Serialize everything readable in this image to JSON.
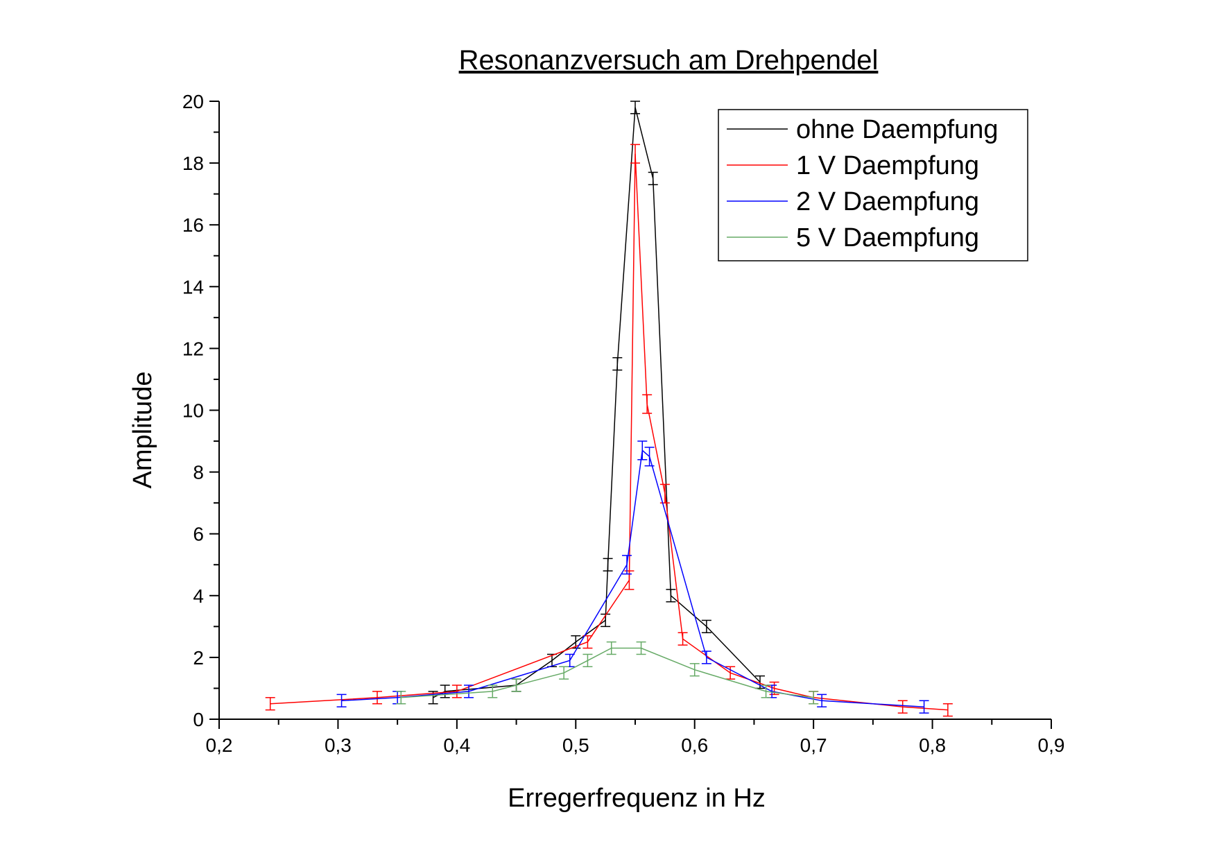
{
  "chart_data": {
    "type": "line",
    "title": "Resonanzversuch am Drehpendel",
    "xlabel": "Erregerfrequenz in Hz",
    "ylabel": "Amplitude",
    "xlim": [
      0.2,
      0.9
    ],
    "ylim": [
      0,
      20
    ],
    "x_ticks": [
      "0,2",
      "0,3",
      "0,4",
      "0,5",
      "0,6",
      "0,7",
      "0,8",
      "0,9"
    ],
    "y_ticks": [
      "0",
      "2",
      "4",
      "6",
      "8",
      "10",
      "12",
      "14",
      "16",
      "18",
      "20"
    ],
    "grid": false,
    "legend_position": "top-right",
    "error_bars": true,
    "series": [
      {
        "name": "ohne Daempfung",
        "color": "#000000",
        "points": [
          {
            "x": 0.38,
            "y": 0.7,
            "err": 0.2
          },
          {
            "x": 0.39,
            "y": 0.9,
            "err": 0.2
          },
          {
            "x": 0.45,
            "y": 1.1,
            "err": 0.2
          },
          {
            "x": 0.48,
            "y": 1.9,
            "err": 0.2
          },
          {
            "x": 0.5,
            "y": 2.5,
            "err": 0.2
          },
          {
            "x": 0.525,
            "y": 3.2,
            "err": 0.2
          },
          {
            "x": 0.527,
            "y": 5.0,
            "err": 0.2
          },
          {
            "x": 0.535,
            "y": 11.5,
            "err": 0.2
          },
          {
            "x": 0.55,
            "y": 19.8,
            "err": 0.2
          },
          {
            "x": 0.565,
            "y": 17.5,
            "err": 0.2
          },
          {
            "x": 0.58,
            "y": 4.0,
            "err": 0.2
          },
          {
            "x": 0.61,
            "y": 3.0,
            "err": 0.2
          },
          {
            "x": 0.655,
            "y": 1.2,
            "err": 0.2
          }
        ]
      },
      {
        "name": "1 V Daempfung",
        "color": "#ff0000",
        "points": [
          {
            "x": 0.243,
            "y": 0.5,
            "err": 0.2
          },
          {
            "x": 0.333,
            "y": 0.7,
            "err": 0.2
          },
          {
            "x": 0.4,
            "y": 0.9,
            "err": 0.2
          },
          {
            "x": 0.51,
            "y": 2.5,
            "err": 0.2
          },
          {
            "x": 0.545,
            "y": 4.5,
            "err": 0.3
          },
          {
            "x": 0.55,
            "y": 18.3,
            "err": 0.3
          },
          {
            "x": 0.56,
            "y": 10.2,
            "err": 0.3
          },
          {
            "x": 0.575,
            "y": 7.3,
            "err": 0.3
          },
          {
            "x": 0.59,
            "y": 2.6,
            "err": 0.2
          },
          {
            "x": 0.63,
            "y": 1.5,
            "err": 0.2
          },
          {
            "x": 0.667,
            "y": 1.0,
            "err": 0.2
          },
          {
            "x": 0.7,
            "y": 0.7,
            "err": 0.2
          },
          {
            "x": 0.775,
            "y": 0.4,
            "err": 0.2
          },
          {
            "x": 0.813,
            "y": 0.3,
            "err": 0.2
          }
        ]
      },
      {
        "name": "2 V Daempfung",
        "color": "#0000ff",
        "points": [
          {
            "x": 0.303,
            "y": 0.6,
            "err": 0.2
          },
          {
            "x": 0.35,
            "y": 0.7,
            "err": 0.2
          },
          {
            "x": 0.41,
            "y": 0.9,
            "err": 0.2
          },
          {
            "x": 0.495,
            "y": 1.9,
            "err": 0.2
          },
          {
            "x": 0.543,
            "y": 5.0,
            "err": 0.3
          },
          {
            "x": 0.556,
            "y": 8.7,
            "err": 0.3
          },
          {
            "x": 0.562,
            "y": 8.5,
            "err": 0.3
          },
          {
            "x": 0.61,
            "y": 2.0,
            "err": 0.2
          },
          {
            "x": 0.665,
            "y": 0.9,
            "err": 0.2
          },
          {
            "x": 0.707,
            "y": 0.6,
            "err": 0.2
          },
          {
            "x": 0.793,
            "y": 0.4,
            "err": 0.2
          }
        ]
      },
      {
        "name": "5 V Daempfung",
        "color": "#66aa66",
        "points": [
          {
            "x": 0.353,
            "y": 0.7,
            "err": 0.2
          },
          {
            "x": 0.43,
            "y": 0.9,
            "err": 0.2
          },
          {
            "x": 0.45,
            "y": 1.1,
            "err": 0.2
          },
          {
            "x": 0.49,
            "y": 1.5,
            "err": 0.2
          },
          {
            "x": 0.51,
            "y": 1.9,
            "err": 0.2
          },
          {
            "x": 0.53,
            "y": 2.3,
            "err": 0.2
          },
          {
            "x": 0.555,
            "y": 2.3,
            "err": 0.2
          },
          {
            "x": 0.6,
            "y": 1.6,
            "err": 0.2
          },
          {
            "x": 0.66,
            "y": 0.9,
            "err": 0.2
          },
          {
            "x": 0.7,
            "y": 0.7,
            "err": 0.2
          }
        ]
      }
    ]
  }
}
